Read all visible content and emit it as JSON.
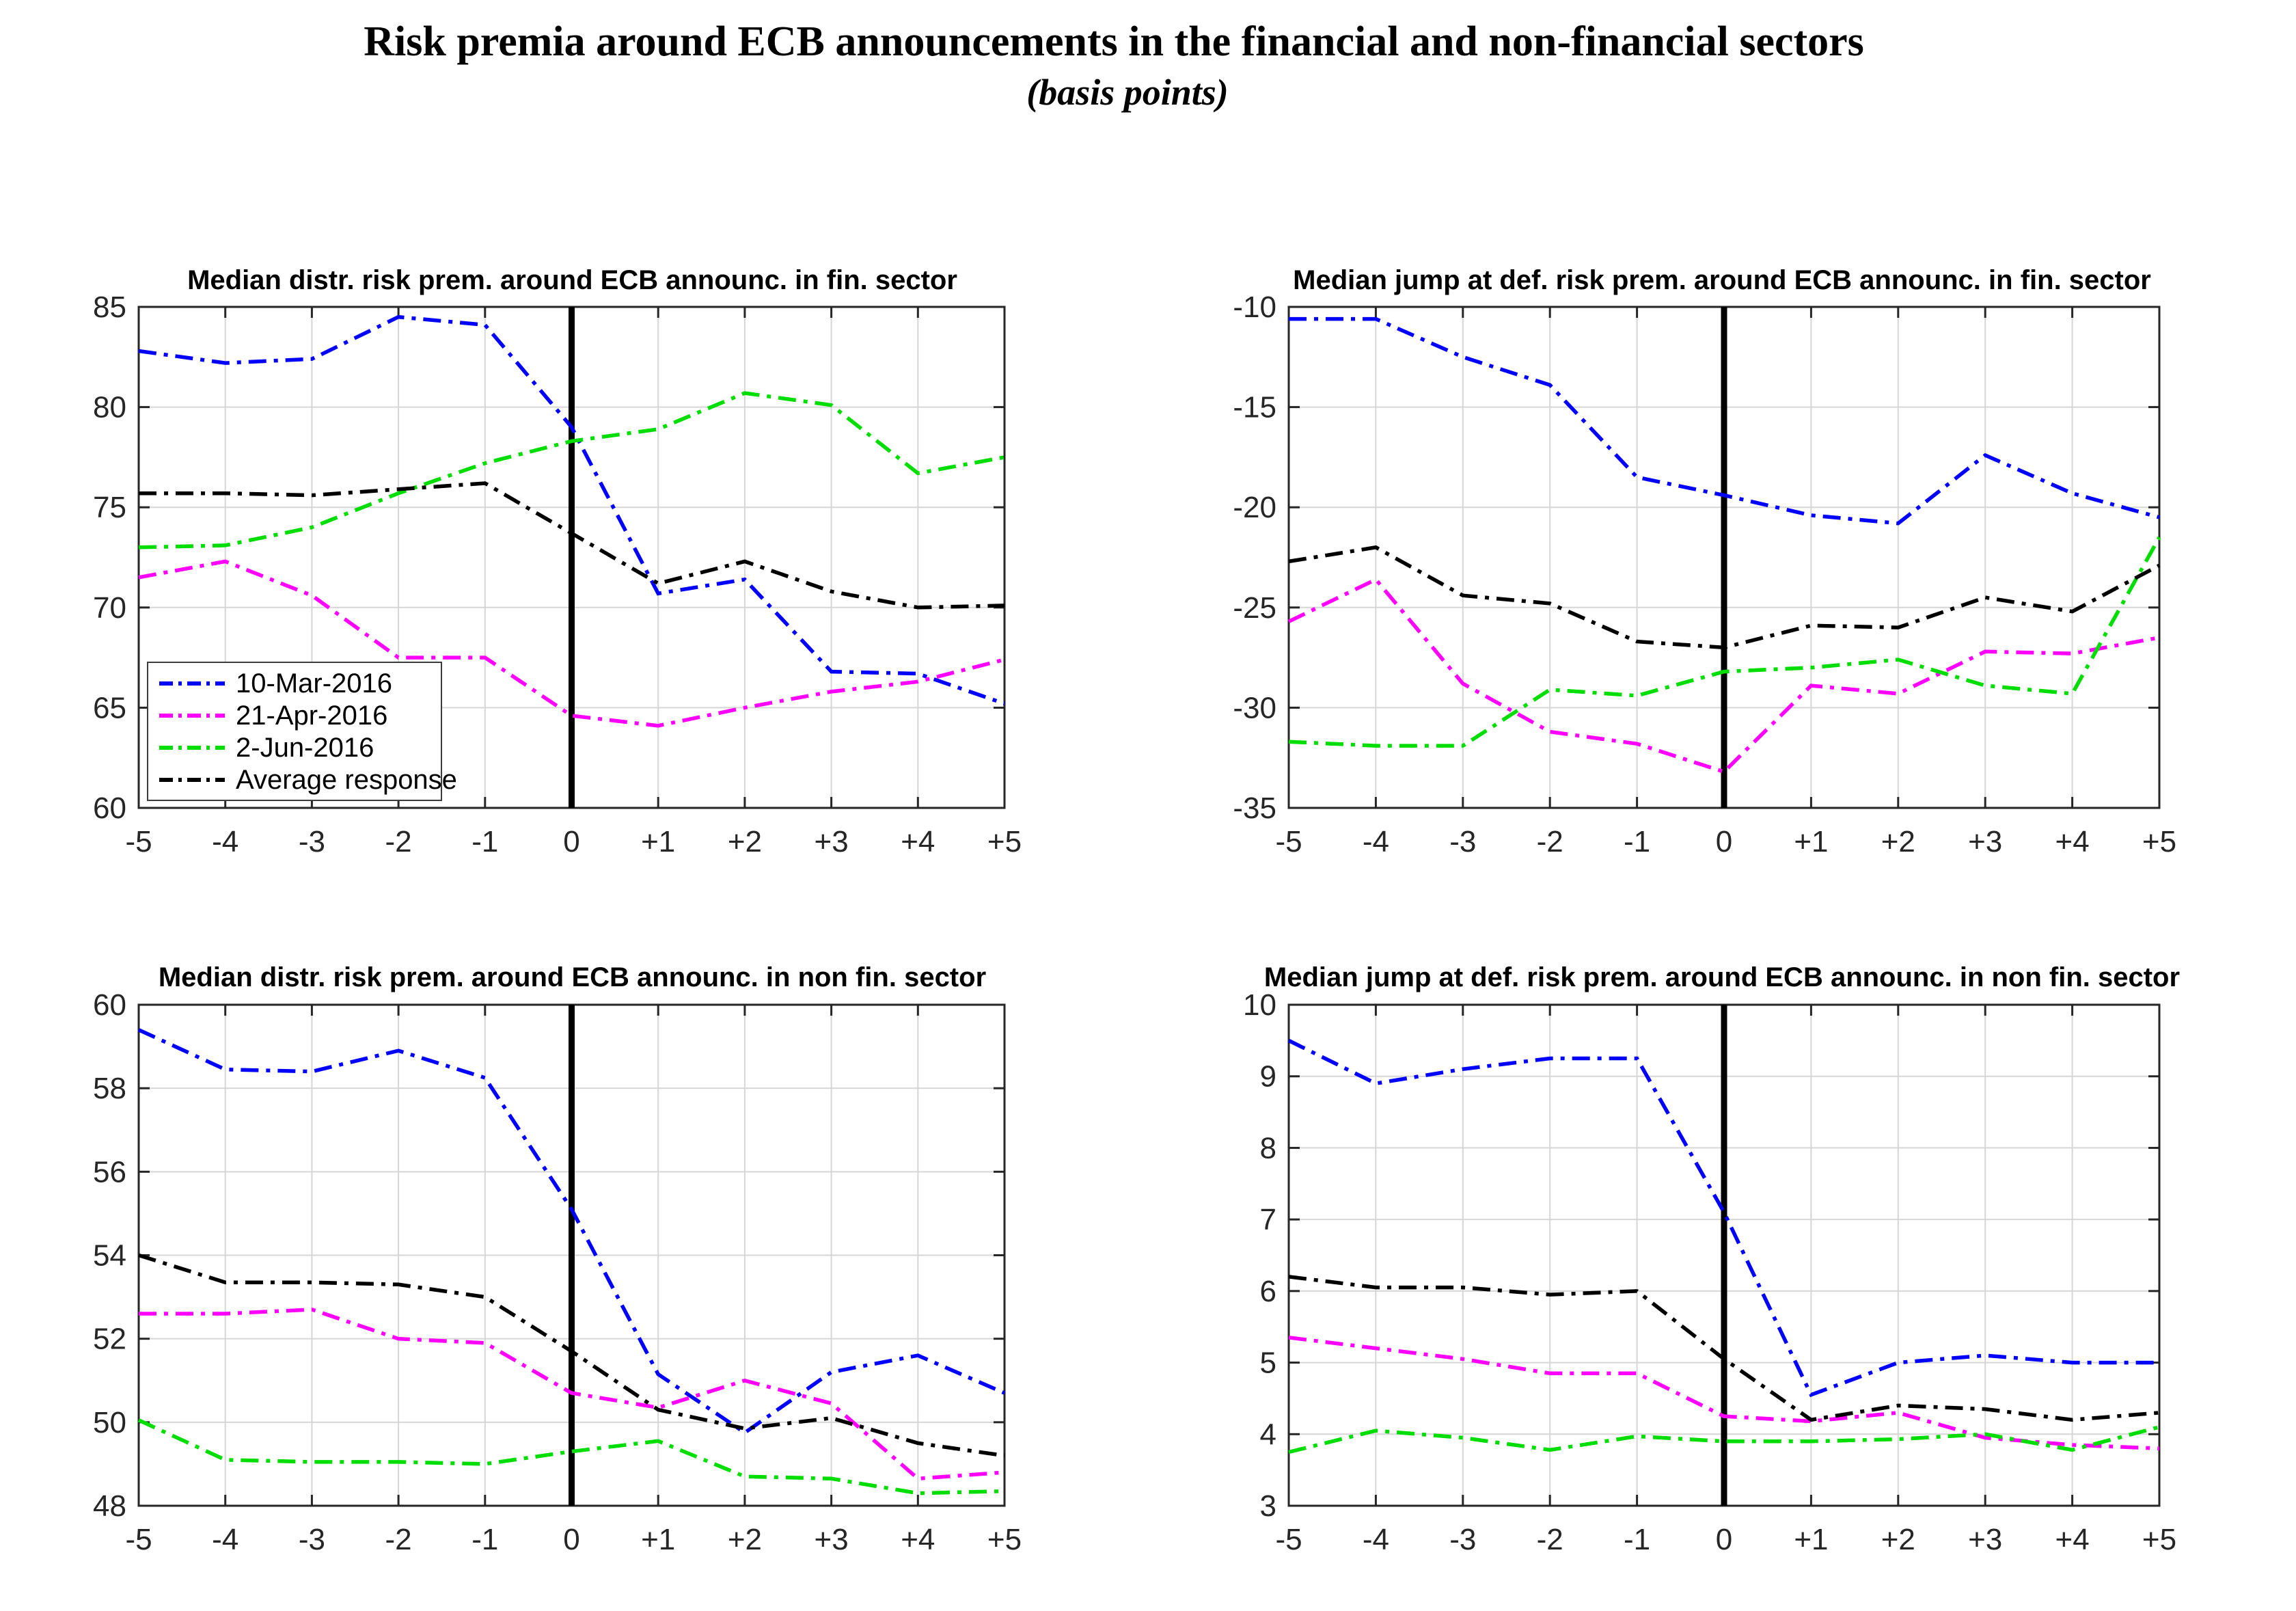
{
  "header": {
    "title": "Risk premia around ECB announcements in the financial and non-financial sectors",
    "subtitle": "(basis points)"
  },
  "legend": {
    "position": "lower-left inside first panel",
    "entries": [
      {
        "label": "10-Mar-2016",
        "color": "#0000FE"
      },
      {
        "label": "21-Apr-2016",
        "color": "#FF00FF"
      },
      {
        "label": "2-Jun-2016",
        "color": "#00DD00"
      },
      {
        "label": "Average response",
        "color": "#000000"
      }
    ]
  },
  "chart_data": [
    {
      "type": "line",
      "title": "Median distr. risk prem. around ECB announc. in fin. sector",
      "x": [
        -5,
        -4,
        -3,
        -2,
        -1,
        0,
        1,
        2,
        3,
        4,
        5
      ],
      "x_tick_labels": [
        "-5",
        "-4",
        "-3",
        "-2",
        "-1",
        "0",
        "+1",
        "+2",
        "+3",
        "+4",
        "+5"
      ],
      "xlim": [
        -5,
        5
      ],
      "ylim": [
        60,
        85
      ],
      "yticks": [
        60,
        65,
        70,
        75,
        80,
        85
      ],
      "grid": true,
      "event_line_x": 0,
      "series": [
        {
          "name": "10-Mar-2016",
          "color": "#0000FE",
          "values": [
            82.8,
            82.2,
            82.4,
            84.5,
            84.1,
            79.0,
            70.7,
            71.4,
            66.8,
            66.7,
            65.2
          ]
        },
        {
          "name": "21-Apr-2016",
          "color": "#FF00FF",
          "values": [
            71.5,
            72.3,
            70.6,
            67.5,
            67.5,
            64.6,
            64.1,
            65.0,
            65.8,
            66.3,
            67.4
          ]
        },
        {
          "name": "2-Jun-2016",
          "color": "#00DD00",
          "values": [
            73.0,
            73.1,
            74.0,
            75.7,
            77.2,
            78.3,
            78.9,
            80.7,
            80.1,
            76.7,
            77.5
          ]
        },
        {
          "name": "Average response",
          "color": "#000000",
          "values": [
            75.7,
            75.7,
            75.6,
            75.9,
            76.2,
            73.7,
            71.2,
            72.3,
            70.8,
            70.0,
            70.1
          ]
        }
      ]
    },
    {
      "type": "line",
      "title": "Median jump at def. risk prem. around ECB announc. in fin. sector",
      "x": [
        -5,
        -4,
        -3,
        -2,
        -1,
        0,
        1,
        2,
        3,
        4,
        5
      ],
      "x_tick_labels": [
        "-5",
        "-4",
        "-3",
        "-2",
        "-1",
        "0",
        "+1",
        "+2",
        "+3",
        "+4",
        "+5"
      ],
      "xlim": [
        -5,
        5
      ],
      "ylim": [
        -35,
        -10
      ],
      "yticks": [
        -35,
        -30,
        -25,
        -20,
        -15,
        -10
      ],
      "grid": true,
      "event_line_x": 0,
      "series": [
        {
          "name": "10-Mar-2016",
          "color": "#0000FE",
          "values": [
            -10.6,
            -10.6,
            -12.5,
            -13.9,
            -18.5,
            -19.4,
            -20.4,
            -20.8,
            -17.4,
            -19.3,
            -20.5
          ]
        },
        {
          "name": "21-Apr-2016",
          "color": "#FF00FF",
          "values": [
            -25.7,
            -23.6,
            -28.8,
            -31.2,
            -31.8,
            -33.2,
            -28.9,
            -29.3,
            -27.2,
            -27.3,
            -26.5
          ]
        },
        {
          "name": "2-Jun-2016",
          "color": "#00DD00",
          "values": [
            -31.7,
            -31.9,
            -31.9,
            -29.1,
            -29.4,
            -28.2,
            -28.0,
            -27.6,
            -28.9,
            -29.3,
            -21.5
          ]
        },
        {
          "name": "Average response",
          "color": "#000000",
          "values": [
            -22.7,
            -22.0,
            -24.4,
            -24.8,
            -26.7,
            -27.0,
            -25.9,
            -26.0,
            -24.5,
            -25.2,
            -22.9
          ]
        }
      ]
    },
    {
      "type": "line",
      "title": "Median distr. risk prem. around ECB announc. in non fin. sector",
      "x": [
        -5,
        -4,
        -3,
        -2,
        -1,
        0,
        1,
        2,
        3,
        4,
        5
      ],
      "x_tick_labels": [
        "-5",
        "-4",
        "-3",
        "-2",
        "-1",
        "0",
        "+1",
        "+2",
        "+3",
        "+4",
        "+5"
      ],
      "xlim": [
        -5,
        5
      ],
      "ylim": [
        48,
        60
      ],
      "yticks": [
        48,
        50,
        52,
        54,
        56,
        58,
        60
      ],
      "grid": true,
      "event_line_x": 0,
      "series": [
        {
          "name": "10-Mar-2016",
          "color": "#0000FE",
          "values": [
            59.4,
            58.45,
            58.4,
            58.9,
            58.25,
            55.1,
            51.15,
            49.75,
            51.2,
            51.6,
            50.7
          ]
        },
        {
          "name": "21-Apr-2016",
          "color": "#FF00FF",
          "values": [
            52.6,
            52.6,
            52.7,
            52.0,
            51.9,
            50.7,
            50.35,
            51.0,
            50.45,
            48.65,
            48.8
          ]
        },
        {
          "name": "2-Jun-2016",
          "color": "#00DD00",
          "values": [
            50.05,
            49.1,
            49.05,
            49.05,
            49.0,
            49.3,
            49.55,
            48.7,
            48.65,
            48.3,
            48.35
          ]
        },
        {
          "name": "Average response",
          "color": "#000000",
          "values": [
            54.0,
            53.35,
            53.35,
            53.3,
            53.0,
            51.7,
            50.3,
            49.85,
            50.1,
            49.5,
            49.2
          ]
        }
      ]
    },
    {
      "type": "line",
      "title": "Median jump at def. risk prem. around ECB announc. in non fin. sector",
      "x": [
        -5,
        -4,
        -3,
        -2,
        -1,
        0,
        1,
        2,
        3,
        4,
        5
      ],
      "x_tick_labels": [
        "-5",
        "-4",
        "-3",
        "-2",
        "-1",
        "0",
        "+1",
        "+2",
        "+3",
        "+4",
        "+5"
      ],
      "xlim": [
        -5,
        5
      ],
      "ylim": [
        3,
        10
      ],
      "yticks": [
        3,
        4,
        5,
        6,
        7,
        8,
        9,
        10
      ],
      "grid": true,
      "event_line_x": 0,
      "series": [
        {
          "name": "10-Mar-2016",
          "color": "#0000FE",
          "values": [
            9.5,
            8.9,
            9.1,
            9.25,
            9.25,
            7.1,
            4.55,
            5.0,
            5.1,
            5.0,
            5.0
          ]
        },
        {
          "name": "21-Apr-2016",
          "color": "#FF00FF",
          "values": [
            5.35,
            5.2,
            5.05,
            4.85,
            4.85,
            4.25,
            4.18,
            4.3,
            3.95,
            3.85,
            3.8
          ]
        },
        {
          "name": "2-Jun-2016",
          "color": "#00DD00",
          "values": [
            3.75,
            4.05,
            3.95,
            3.78,
            3.97,
            3.9,
            3.9,
            3.93,
            4.0,
            3.78,
            4.1
          ]
        },
        {
          "name": "Average response",
          "color": "#000000",
          "values": [
            6.2,
            6.05,
            6.05,
            5.95,
            6.0,
            5.05,
            4.2,
            4.4,
            4.35,
            4.2,
            4.3
          ]
        }
      ]
    }
  ]
}
